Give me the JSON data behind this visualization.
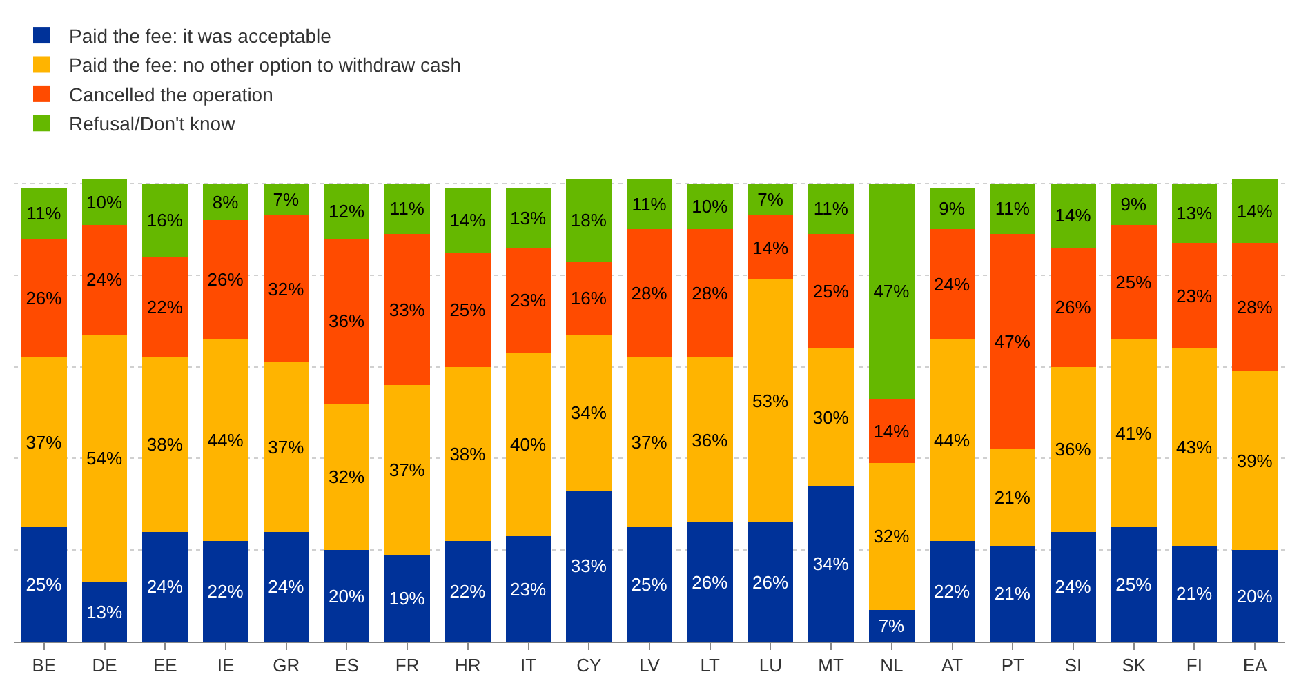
{
  "chart_data": {
    "type": "bar",
    "stacked": true,
    "legend": "top left",
    "grid": "y",
    "tick_labels": "x",
    "categories": [
      "BE",
      "DE",
      "EE",
      "IE",
      "GR",
      "ES",
      "FR",
      "HR",
      "IT",
      "CY",
      "LV",
      "LT",
      "LU",
      "MT",
      "NL",
      "AT",
      "PT",
      "SI",
      "SK",
      "FI",
      "EA"
    ],
    "series": [
      {
        "name": "Paid the fee: it was acceptable",
        "color": "#003299",
        "values": [
          25,
          13,
          24,
          22,
          24,
          20,
          19,
          22,
          23,
          33,
          25,
          26,
          26,
          34,
          7,
          22,
          21,
          24,
          25,
          21,
          20
        ],
        "value_labels": [
          "25%",
          "13%",
          "24%",
          "22%",
          "24%",
          "20%",
          "19%",
          "22%",
          "23%",
          "33%",
          "25%",
          "26%",
          "26%",
          "34%",
          "7%",
          "22%",
          "21%",
          "24%",
          "25%",
          "21%",
          "20%"
        ]
      },
      {
        "name": "Paid the fee: no other option to withdraw cash",
        "color": "#ffb400",
        "values": [
          37,
          54,
          38,
          44,
          37,
          32,
          37,
          38,
          40,
          34,
          37,
          36,
          53,
          30,
          32,
          44,
          21,
          36,
          41,
          43,
          39
        ],
        "value_labels": [
          "37%",
          "54%",
          "38%",
          "44%",
          "37%",
          "32%",
          "37%",
          "38%",
          "40%",
          "34%",
          "37%",
          "36%",
          "53%",
          "30%",
          "32%",
          "44%",
          "21%",
          "36%",
          "41%",
          "43%",
          "39%"
        ]
      },
      {
        "name": "Cancelled the operation",
        "color": "#ff4b00",
        "values": [
          26,
          24,
          22,
          26,
          32,
          36,
          33,
          25,
          23,
          16,
          28,
          28,
          14,
          25,
          14,
          24,
          47,
          26,
          25,
          23,
          28
        ],
        "value_labels": [
          "26%",
          "24%",
          "22%",
          "26%",
          "32%",
          "36%",
          "33%",
          "25%",
          "23%",
          "16%",
          "28%",
          "28%",
          "14%",
          "25%",
          "14%",
          "24%",
          "47%",
          "26%",
          "25%",
          "23%",
          "28%"
        ]
      },
      {
        "name": "Refusal/Don't know",
        "color": "#65b800",
        "values": [
          11,
          10,
          16,
          8,
          7,
          12,
          11,
          14,
          13,
          18,
          11,
          10,
          7,
          11,
          47,
          9,
          11,
          14,
          9,
          13,
          14
        ],
        "value_labels": [
          "11%",
          "10%",
          "16%",
          "8%",
          "7%",
          "12%",
          "11%",
          "14%",
          "13%",
          "18%",
          "11%",
          "10%",
          "7%",
          "11%",
          "47%",
          "9%",
          "11%",
          "14%",
          "9%",
          "13%",
          "14%"
        ]
      }
    ]
  }
}
